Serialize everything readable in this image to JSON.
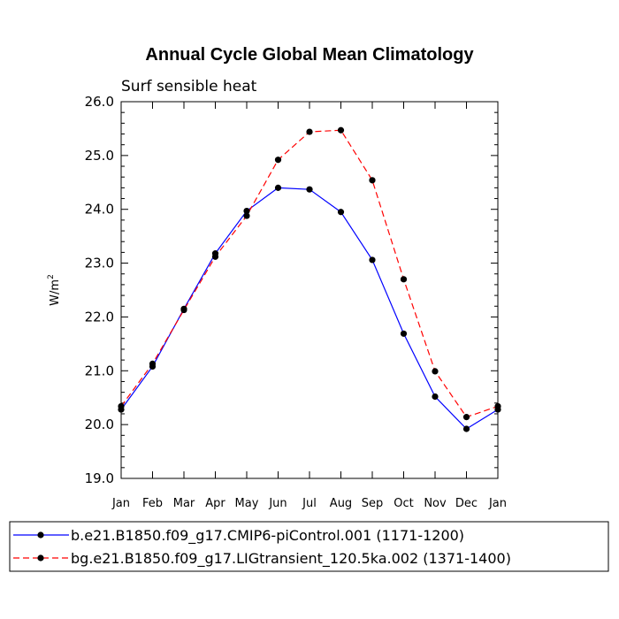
{
  "chart_data": {
    "type": "line",
    "title": "Annual Cycle Global Mean Climatology",
    "subtitle": "Surf sensible heat",
    "ylabel": "W/m",
    "ylabel_sup": "2",
    "ylim": [
      19.0,
      26.0
    ],
    "yticks": [
      "19.0",
      "20.0",
      "21.0",
      "22.0",
      "23.0",
      "24.0",
      "25.0",
      "26.0"
    ],
    "categories": [
      "Jan",
      "Feb",
      "Mar",
      "Apr",
      "May",
      "Jun",
      "Jul",
      "Aug",
      "Sep",
      "Oct",
      "Nov",
      "Dec",
      "Jan"
    ],
    "grid": false,
    "legend_position": "bottom",
    "series": [
      {
        "name": "b.e21.B1850.f09_g17.CMIP6-piControl.001 (1171-1200)",
        "color": "#0000ff",
        "dash": "solid",
        "values": [
          20.28,
          21.08,
          22.15,
          23.18,
          23.97,
          24.4,
          24.37,
          23.95,
          23.06,
          21.69,
          20.52,
          19.92,
          20.28
        ]
      },
      {
        "name": "bg.e21.B1850.f09_g17.LIGtransient_120.5ka.002 (1371-1400)",
        "color": "#ff0000",
        "dash": "dashed",
        "values": [
          20.34,
          21.13,
          22.13,
          23.12,
          23.88,
          24.92,
          25.44,
          25.47,
          24.54,
          22.7,
          20.99,
          20.14,
          20.34
        ]
      }
    ]
  }
}
